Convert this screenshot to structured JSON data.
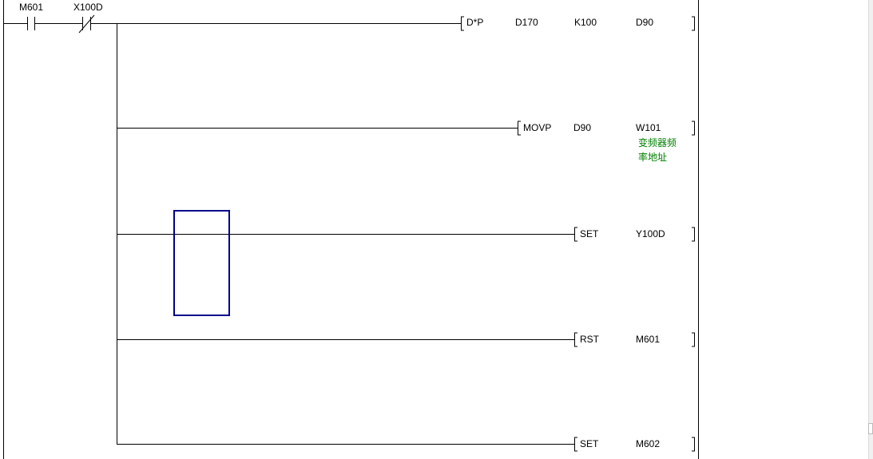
{
  "contacts": [
    {
      "device": "M601",
      "type": "normally-open"
    },
    {
      "device": "X100D",
      "type": "normally-closed"
    }
  ],
  "rungs": [
    {
      "instruction": "D*P",
      "operands": [
        "D170",
        "K100",
        "D90"
      ]
    },
    {
      "instruction": "MOVP",
      "operands": [
        "D90",
        "W101"
      ],
      "comment": [
        "变频器频",
        "率地址"
      ]
    },
    {
      "instruction": "SET",
      "operands": [
        "Y100D"
      ]
    },
    {
      "instruction": "RST",
      "operands": [
        "M601"
      ]
    },
    {
      "instruction": "SET",
      "operands": [
        "M602"
      ]
    }
  ],
  "colors": {
    "cursor": "#00008b",
    "comment": "#008000",
    "line": "#000000"
  }
}
